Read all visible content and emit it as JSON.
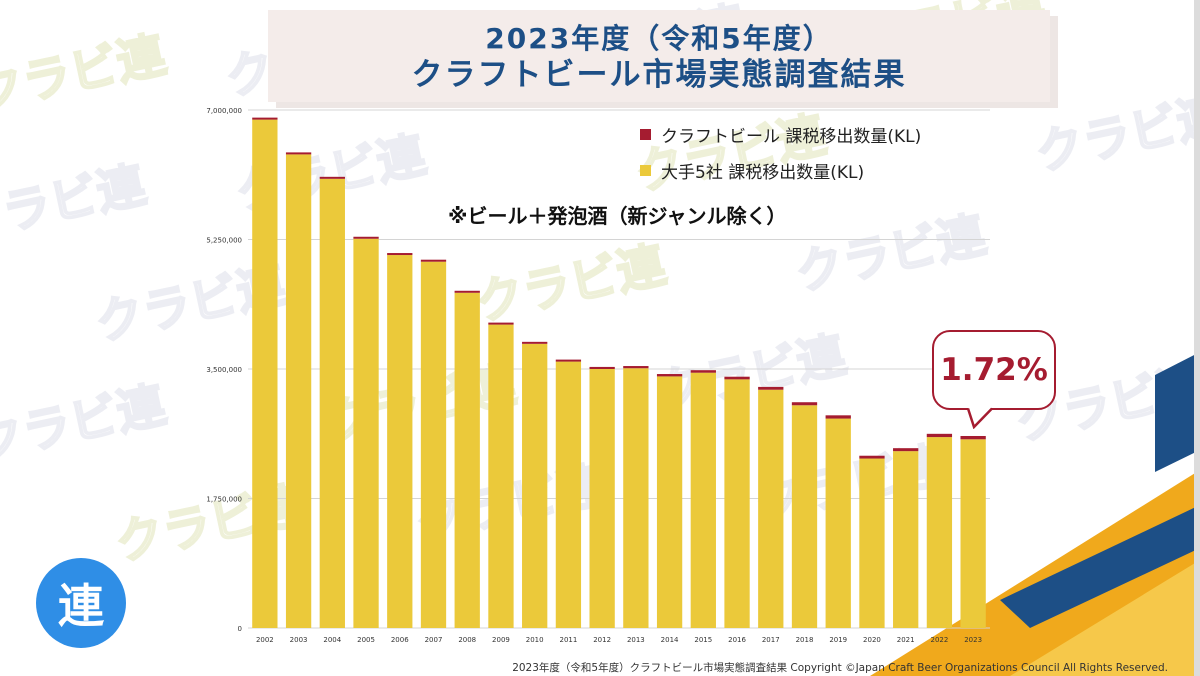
{
  "title": {
    "line1": "2023年度（令和5年度）",
    "line2": "クラフトビール市場実態調査結果"
  },
  "watermark": {
    "text": "クラビ連"
  },
  "logo": {
    "text": "連"
  },
  "note": "※ビール＋発泡酒（新ジャンル除く）",
  "callout": {
    "text": "1.72%"
  },
  "footer": "2023年度（令和5年度）クラフトビール市場実態調査結果 Copyright ©Japan Craft Beer Organizations Council All Rights Reserved.",
  "colors": {
    "title": "#1d4f86",
    "craft": "#a51c30",
    "major": "#ebc93a",
    "accent_orange": "#f0a91c",
    "accent_navy": "#1d4f86"
  },
  "chart_data": {
    "type": "bar",
    "stacked": true,
    "categories": [
      "2002",
      "2003",
      "2004",
      "2005",
      "2006",
      "2007",
      "2008",
      "2009",
      "2010",
      "2011",
      "2012",
      "2013",
      "2014",
      "2015",
      "2016",
      "2017",
      "2018",
      "2019",
      "2020",
      "2021",
      "2022",
      "2023"
    ],
    "ylim": [
      0,
      7000000
    ],
    "yticks": [
      0,
      1750000,
      3500000,
      5250000,
      7000000
    ],
    "ytick_labels": [
      "0",
      "1,750,000",
      "3,500,000",
      "5,250,000",
      "7,000,000"
    ],
    "grid": true,
    "legend_position": "top-right",
    "series": [
      {
        "name": "大手5社 課税移出数量(KL)",
        "color": "#ebc93a",
        "values": [
          6870000,
          6400000,
          6070000,
          5260000,
          5040000,
          4950000,
          4530000,
          4100000,
          3840000,
          3600000,
          3500000,
          3510000,
          3400000,
          3450000,
          3360000,
          3220000,
          3010000,
          2830000,
          2290000,
          2390000,
          2580000,
          2550000
        ]
      },
      {
        "name": "クラフトビール 課税移出数量(KL)",
        "color": "#a51c30",
        "values": [
          18000,
          18000,
          19000,
          19000,
          20000,
          21000,
          22000,
          24000,
          25000,
          26000,
          28000,
          30000,
          32000,
          34000,
          36000,
          38000,
          41000,
          44000,
          38000,
          40000,
          44000,
          44700
        ]
      }
    ]
  }
}
